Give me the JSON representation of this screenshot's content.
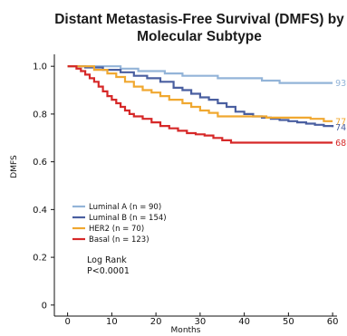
{
  "chart_data": {
    "type": "line",
    "title_lines": [
      "Distant Metastasis-Free Survival (DMFS) by",
      "Molecular Subtype"
    ],
    "xlabel": "Months",
    "ylabel": "DMFS",
    "xlim": [
      -3,
      61
    ],
    "ylim": [
      -0.05,
      1.05
    ],
    "x_ticks": [
      0,
      10,
      20,
      30,
      40,
      50,
      60
    ],
    "y_ticks": [
      0,
      0.2,
      0.4,
      0.6,
      0.8,
      1.0
    ],
    "y_tick_labels": [
      "0",
      "0.2",
      "0.4",
      "0.6",
      "0.8",
      "1.0"
    ],
    "legend_position": "lower-left",
    "annotation_lines": [
      "Log Rank",
      "P<0.0001"
    ],
    "series": [
      {
        "name": "Luminal A (n = 90)",
        "color": "#93b4d8",
        "end_label": "93",
        "points": [
          [
            0,
            1.0
          ],
          [
            8,
            1.0
          ],
          [
            12,
            0.99
          ],
          [
            16,
            0.98
          ],
          [
            22,
            0.97
          ],
          [
            26,
            0.96
          ],
          [
            30,
            0.96
          ],
          [
            34,
            0.95
          ],
          [
            38,
            0.95
          ],
          [
            42,
            0.95
          ],
          [
            44,
            0.94
          ],
          [
            46,
            0.94
          ],
          [
            48,
            0.93
          ],
          [
            60,
            0.93
          ]
        ]
      },
      {
        "name": "Luminal B (n = 154)",
        "color": "#4a5fa0",
        "end_label": "74",
        "points": [
          [
            0,
            1.0
          ],
          [
            4,
            0.995
          ],
          [
            8,
            0.985
          ],
          [
            12,
            0.975
          ],
          [
            15,
            0.96
          ],
          [
            18,
            0.95
          ],
          [
            21,
            0.935
          ],
          [
            24,
            0.91
          ],
          [
            26,
            0.9
          ],
          [
            28,
            0.885
          ],
          [
            30,
            0.87
          ],
          [
            32,
            0.86
          ],
          [
            34,
            0.845
          ],
          [
            36,
            0.83
          ],
          [
            38,
            0.81
          ],
          [
            40,
            0.8
          ],
          [
            42,
            0.79
          ],
          [
            44,
            0.785
          ],
          [
            46,
            0.78
          ],
          [
            48,
            0.775
          ],
          [
            50,
            0.77
          ],
          [
            52,
            0.765
          ],
          [
            54,
            0.76
          ],
          [
            56,
            0.755
          ],
          [
            58,
            0.75
          ],
          [
            60,
            0.745
          ]
        ]
      },
      {
        "name": "HER2 (n = 70)",
        "color": "#f0a830",
        "end_label": "77",
        "points": [
          [
            0,
            1.0
          ],
          [
            6,
            0.985
          ],
          [
            9,
            0.97
          ],
          [
            11,
            0.955
          ],
          [
            13,
            0.935
          ],
          [
            15,
            0.915
          ],
          [
            17,
            0.9
          ],
          [
            19,
            0.89
          ],
          [
            21,
            0.875
          ],
          [
            23,
            0.86
          ],
          [
            26,
            0.845
          ],
          [
            28,
            0.83
          ],
          [
            30,
            0.815
          ],
          [
            32,
            0.805
          ],
          [
            34,
            0.79
          ],
          [
            40,
            0.79
          ],
          [
            45,
            0.785
          ],
          [
            50,
            0.785
          ],
          [
            55,
            0.78
          ],
          [
            58,
            0.77
          ],
          [
            60,
            0.77
          ]
        ]
      },
      {
        "name": "Basal (n = 123)",
        "color": "#d62828",
        "end_label": "68",
        "points": [
          [
            0,
            1.0
          ],
          [
            2,
            0.99
          ],
          [
            3,
            0.98
          ],
          [
            4,
            0.965
          ],
          [
            5,
            0.95
          ],
          [
            6,
            0.935
          ],
          [
            7,
            0.915
          ],
          [
            8,
            0.895
          ],
          [
            9,
            0.875
          ],
          [
            10,
            0.86
          ],
          [
            11,
            0.845
          ],
          [
            12,
            0.83
          ],
          [
            13,
            0.815
          ],
          [
            14,
            0.8
          ],
          [
            15,
            0.79
          ],
          [
            17,
            0.78
          ],
          [
            19,
            0.765
          ],
          [
            21,
            0.75
          ],
          [
            23,
            0.74
          ],
          [
            25,
            0.73
          ],
          [
            27,
            0.72
          ],
          [
            29,
            0.715
          ],
          [
            31,
            0.71
          ],
          [
            33,
            0.7
          ],
          [
            35,
            0.69
          ],
          [
            37,
            0.68
          ],
          [
            60,
            0.68
          ]
        ]
      }
    ]
  }
}
